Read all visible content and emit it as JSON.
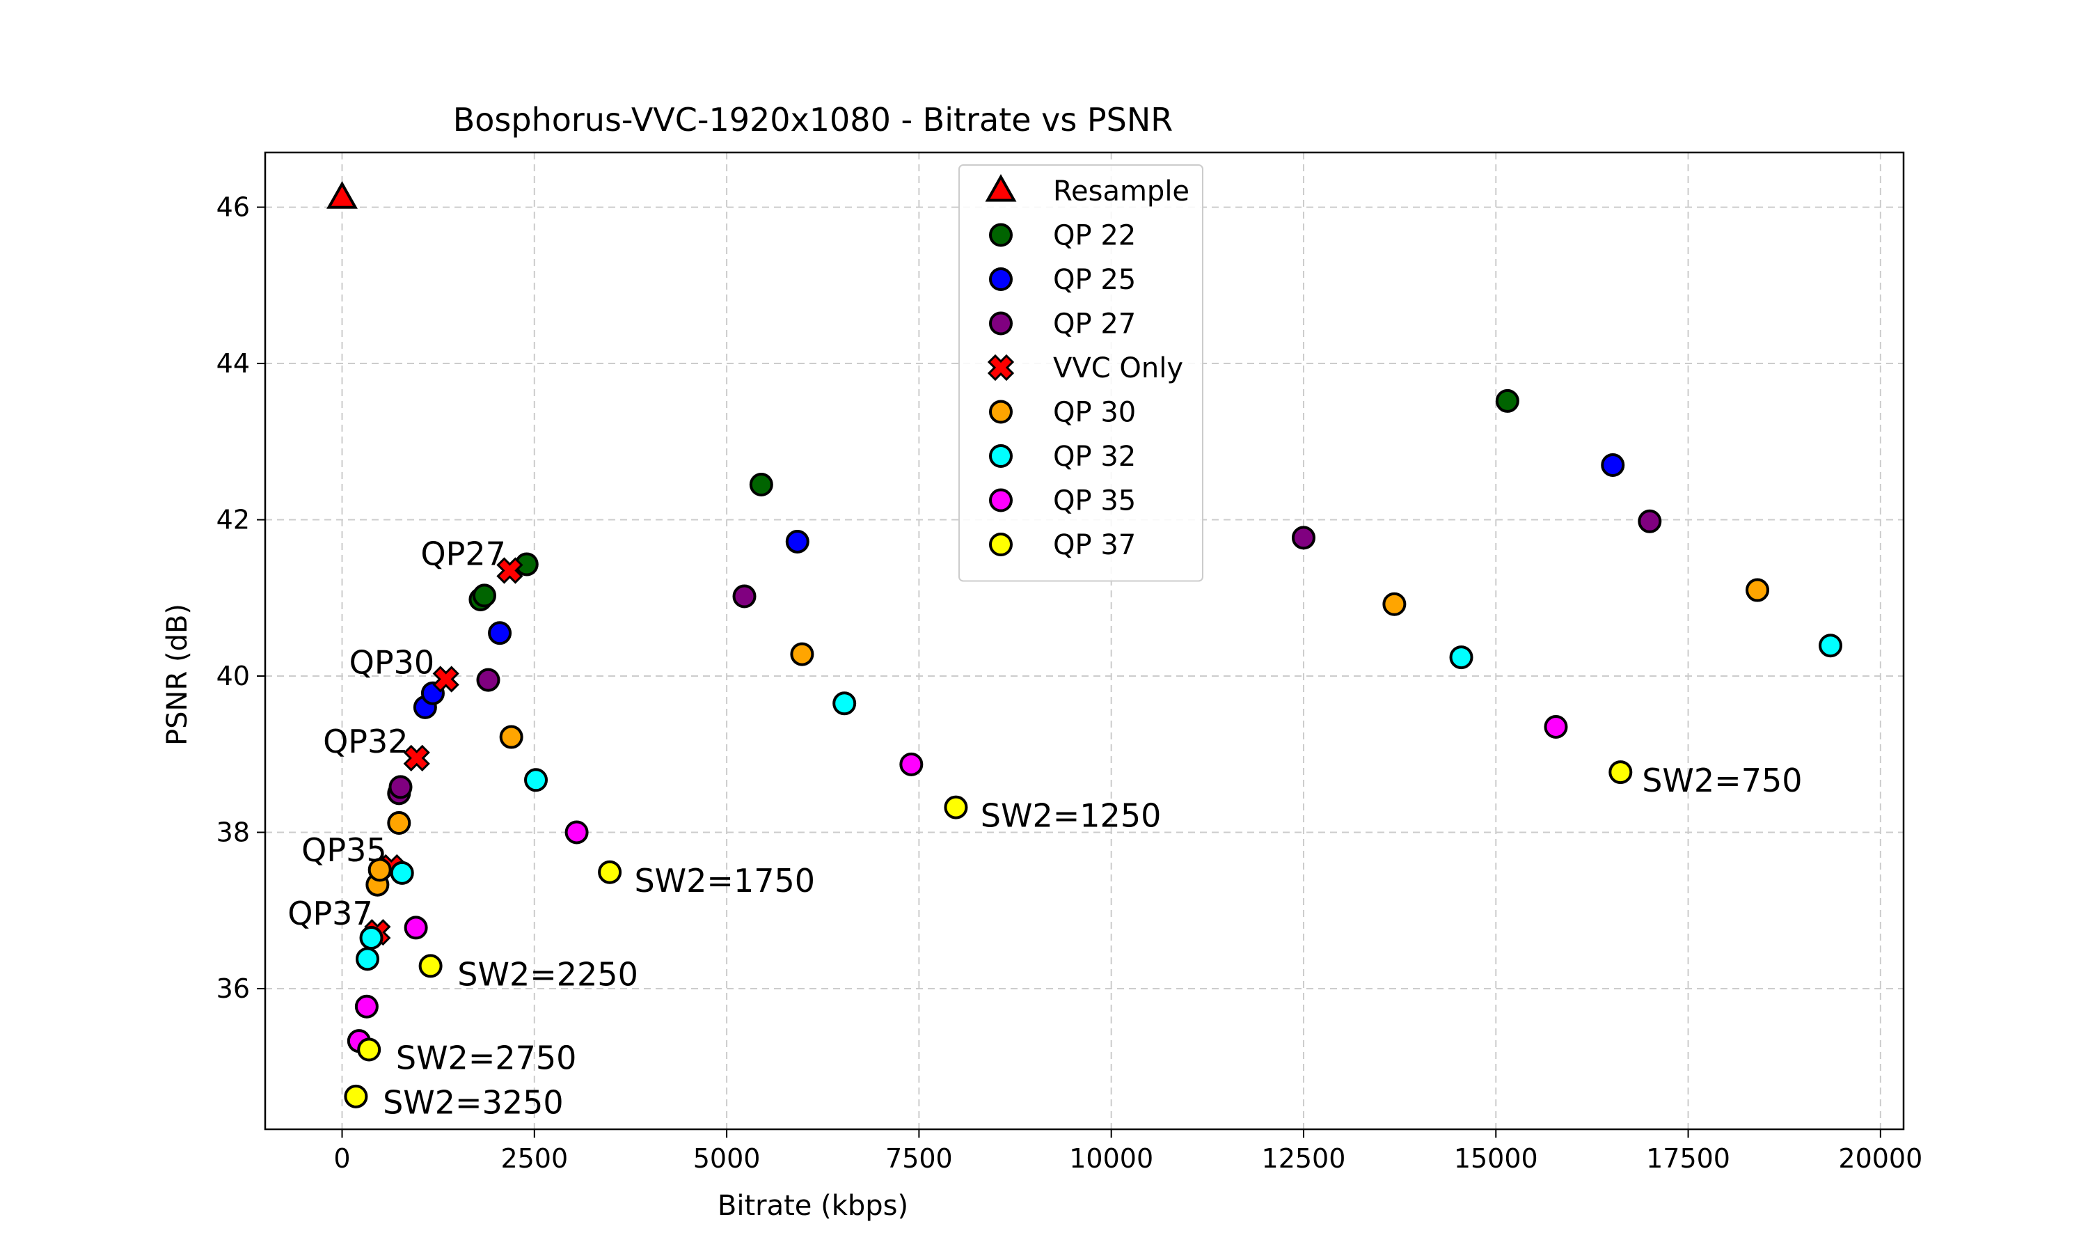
{
  "chart_data": {
    "type": "scatter",
    "title": "Bosphorus-VVC-1920x1080 - Bitrate vs PSNR",
    "xlabel": "Bitrate (kbps)",
    "ylabel": "PSNR (dB)",
    "xlim": [
      -1000,
      20300
    ],
    "ylim": [
      34.2,
      46.7
    ],
    "xticks": [
      0,
      2500,
      5000,
      7500,
      10000,
      12500,
      15000,
      17500,
      20000
    ],
    "xtick_labels": [
      "0",
      "2500",
      "5000",
      "7500",
      "10000",
      "12500",
      "15000",
      "17500",
      "20000"
    ],
    "yticks": [
      36,
      38,
      40,
      42,
      44,
      46
    ],
    "ytick_labels": [
      "36",
      "38",
      "40",
      "42",
      "44",
      "46"
    ],
    "grid": true,
    "legend_position": "upper-center",
    "series": [
      {
        "name": "Resample",
        "marker": "triangle",
        "color": "#ff0000",
        "points": [
          [
            0,
            46.12
          ]
        ]
      },
      {
        "name": "QP 22",
        "marker": "circle",
        "color": "#006400",
        "points": [
          [
            1800,
            40.98
          ],
          [
            1850,
            41.03
          ],
          [
            2400,
            41.43
          ],
          [
            5450,
            42.45
          ],
          [
            15150,
            43.52
          ]
        ]
      },
      {
        "name": "QP 25",
        "marker": "circle",
        "color": "#0000ff",
        "points": [
          [
            1080,
            39.6
          ],
          [
            1180,
            39.78
          ],
          [
            2050,
            40.55
          ],
          [
            5920,
            41.72
          ],
          [
            16520,
            42.7
          ]
        ]
      },
      {
        "name": "QP 27",
        "marker": "circle",
        "color": "#800080",
        "points": [
          [
            740,
            38.5
          ],
          [
            760,
            38.58
          ],
          [
            1900,
            39.95
          ],
          [
            5230,
            41.02
          ],
          [
            12500,
            41.77
          ],
          [
            17000,
            41.98
          ]
        ]
      },
      {
        "name": "VVC Only",
        "marker": "x",
        "color": "#ff0000",
        "points": [
          [
            460,
            36.72
          ],
          [
            640,
            37.55
          ],
          [
            970,
            38.95
          ],
          [
            1350,
            39.96
          ],
          [
            2180,
            41.35
          ]
        ]
      },
      {
        "name": "QP 30",
        "marker": "circle",
        "color": "#ffa500",
        "points": [
          [
            460,
            37.33
          ],
          [
            490,
            37.52
          ],
          [
            740,
            38.12
          ],
          [
            2200,
            39.22
          ],
          [
            5980,
            40.28
          ],
          [
            13680,
            40.92
          ],
          [
            18400,
            41.1
          ]
        ]
      },
      {
        "name": "QP 32",
        "marker": "circle",
        "color": "#00ffff",
        "points": [
          [
            330,
            36.38
          ],
          [
            380,
            36.65
          ],
          [
            780,
            37.48
          ],
          [
            2520,
            38.67
          ],
          [
            6530,
            39.65
          ],
          [
            14550,
            40.24
          ],
          [
            19350,
            40.39
          ]
        ]
      },
      {
        "name": "QP 35",
        "marker": "circle",
        "color": "#ff00ff",
        "points": [
          [
            220,
            35.33
          ],
          [
            320,
            35.77
          ],
          [
            960,
            36.78
          ],
          [
            3050,
            38.0
          ],
          [
            7400,
            38.87
          ],
          [
            15780,
            39.35
          ]
        ]
      },
      {
        "name": "QP 37",
        "marker": "circle",
        "color": "#ffff00",
        "points": [
          [
            180,
            34.62
          ],
          [
            350,
            35.22
          ],
          [
            1150,
            36.29
          ],
          [
            3480,
            37.49
          ],
          [
            7980,
            38.32
          ],
          [
            16620,
            38.77
          ]
        ]
      }
    ],
    "annotations": [
      {
        "text": "QP27",
        "x": 2130,
        "y": 41.42,
        "align": "end"
      },
      {
        "text": "QP30",
        "x": 1200,
        "y": 40.03,
        "align": "end"
      },
      {
        "text": "QP32",
        "x": 860,
        "y": 39.02,
        "align": "end"
      },
      {
        "text": "QP35",
        "x": 580,
        "y": 37.63,
        "align": "end"
      },
      {
        "text": "QP37",
        "x": 400,
        "y": 36.82,
        "align": "end"
      },
      {
        "text": "SW2=750",
        "x": 16900,
        "y": 38.52,
        "align": "start"
      },
      {
        "text": "SW2=1250",
        "x": 8300,
        "y": 38.07,
        "align": "start"
      },
      {
        "text": "SW2=1750",
        "x": 3800,
        "y": 37.24,
        "align": "start"
      },
      {
        "text": "SW2=2250",
        "x": 1500,
        "y": 36.04,
        "align": "start"
      },
      {
        "text": "SW2=2750",
        "x": 700,
        "y": 34.97,
        "align": "start"
      },
      {
        "text": "SW2=3250",
        "x": 530,
        "y": 34.4,
        "align": "start"
      }
    ]
  }
}
